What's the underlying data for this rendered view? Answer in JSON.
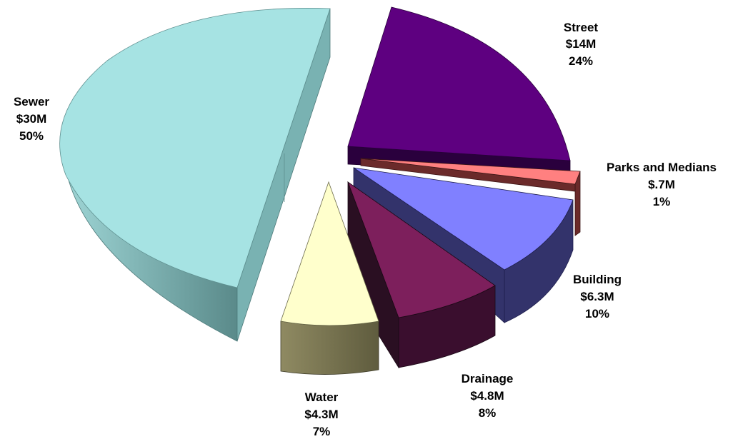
{
  "chart_data": {
    "type": "pie",
    "style": "3d-exploded",
    "title": "",
    "legend": "none",
    "slices": [
      {
        "name": "Street",
        "amount": "$14M",
        "percent": "24%",
        "value": 24,
        "color": "#5e0080"
      },
      {
        "name": "Parks and Medians",
        "amount": "$.7M",
        "percent": "1%",
        "value": 1,
        "color": "#ff8080"
      },
      {
        "name": "Building",
        "amount": "$6.3M",
        "percent": "10%",
        "value": 10,
        "color": "#8080ff"
      },
      {
        "name": "Drainage",
        "amount": "$4.8M",
        "percent": "8%",
        "value": 8,
        "color": "#7d1f5c"
      },
      {
        "name": "Water",
        "amount": "$4.3M",
        "percent": "7%",
        "value": 7,
        "color": "#ffffcc"
      },
      {
        "name": "Sewer",
        "amount": "$30M",
        "percent": "50%",
        "value": 50,
        "color": "#a6e3e3"
      }
    ]
  }
}
